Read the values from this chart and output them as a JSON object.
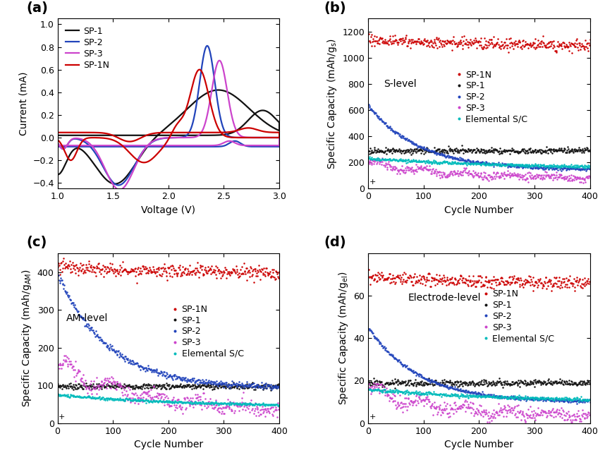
{
  "panel_labels": [
    "(a)",
    "(b)",
    "(c)",
    "(d)"
  ],
  "colors": {
    "SP1N": "#cc0000",
    "SP1": "#111111",
    "SP2": "#2244bb",
    "SP3": "#cc44cc",
    "elemental": "#00bbbb"
  },
  "panel_a": {
    "xlabel": "Voltage (V)",
    "ylabel": "Current (mA)",
    "xlim": [
      1.0,
      3.0
    ],
    "ylim": [
      -0.45,
      1.05
    ],
    "yticks": [
      -0.4,
      -0.2,
      0.0,
      0.2,
      0.4,
      0.6,
      0.8,
      1.0
    ],
    "xticks": [
      1.0,
      1.5,
      2.0,
      2.5,
      3.0
    ],
    "legend_labels": [
      "SP-1",
      "SP-2",
      "SP-3",
      "SP-1N"
    ]
  },
  "panel_b": {
    "xlabel": "Cycle Number",
    "ylabel": "Specific Capacity (mAh/g$_\\mathrm{s}$)",
    "xlim": [
      0,
      400
    ],
    "ylim": [
      0,
      1300
    ],
    "yticks": [
      0,
      200,
      400,
      600,
      800,
      1000,
      1200
    ],
    "xticks": [
      0,
      100,
      200,
      300,
      400
    ],
    "label_text": "S-level",
    "legend_labels": [
      "SP-1N",
      "SP-1",
      "SP-2",
      "SP-3",
      "Elemental S/C"
    ]
  },
  "panel_c": {
    "xlabel": "Cycle Number",
    "ylabel": "Specific Capacity (mAh/g$_\\mathrm{AM}$)",
    "xlim": [
      0,
      400
    ],
    "ylim": [
      0,
      450
    ],
    "yticks": [
      0,
      100,
      200,
      300,
      400
    ],
    "xticks": [
      0,
      100,
      200,
      300,
      400
    ],
    "label_text": "AM-level",
    "legend_labels": [
      "SP-1N",
      "SP-1",
      "SP-2",
      "SP-3",
      "Elemental S/C"
    ]
  },
  "panel_d": {
    "xlabel": "Cycle Number",
    "ylabel": "Specific Capacity (mAh/g$_\\mathrm{el}$)",
    "xlim": [
      0,
      400
    ],
    "ylim": [
      0,
      80
    ],
    "yticks": [
      0,
      20,
      40,
      60
    ],
    "xticks": [
      0,
      100,
      200,
      300,
      400
    ],
    "label_text": "Electrode-level",
    "legend_labels": [
      "SP-1N",
      "SP-1",
      "SP-2",
      "SP-3",
      "Elemental S/C"
    ]
  }
}
